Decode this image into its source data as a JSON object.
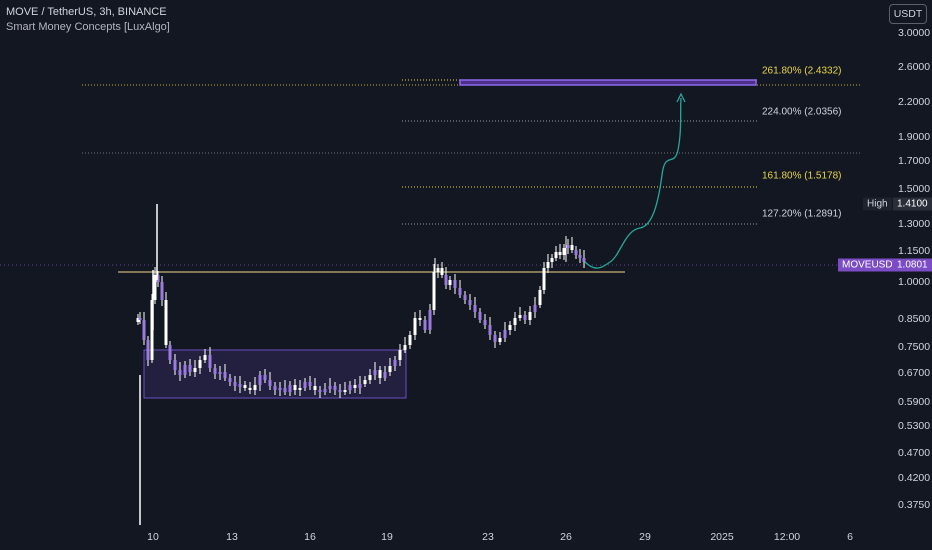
{
  "header": {
    "symbol_title": "MOVE / TetherUS, 3h, BINANCE",
    "indicator": "Smart Money Concepts [LuxAlgo]"
  },
  "currency_button": "USDT",
  "price_axis": [
    "3.0000",
    "2.6000",
    "2.2000",
    "1.9000",
    "1.7000",
    "1.5000",
    "1.3000",
    "1.1500",
    "1.0000",
    "0.8500",
    "0.7500",
    "0.6700",
    "0.5900",
    "0.5300",
    "0.4700",
    "0.4200",
    "0.3750"
  ],
  "time_axis": [
    "10",
    "13",
    "16",
    "19",
    "23",
    "26",
    "29",
    "2025",
    "12:00",
    "6"
  ],
  "fib_levels": [
    {
      "label": "261.80% (2.4332)",
      "color": "#e8d44d"
    },
    {
      "label": "224.00% (2.0356)",
      "color": "#d1d4dc"
    },
    {
      "label": "161.80% (1.5178)",
      "color": "#e8d44d"
    },
    {
      "label": "127.20% (1.2891)",
      "color": "#d1d4dc"
    }
  ],
  "high_tag": {
    "label": "High",
    "value": "1.4100"
  },
  "symbol_tag": {
    "label": "MOVEUSDT",
    "value": "1.0801"
  },
  "colors": {
    "background": "#131722",
    "candle": "#ffffff",
    "accent": "#7b4cc4",
    "fib_yellow": "#e8d44d",
    "projection": "#26a69a",
    "range_box": "#6c4ec4"
  },
  "chart_data": {
    "type": "candlestick",
    "title": "MOVE / TetherUS, 3h, BINANCE",
    "y_scale": "log",
    "ylim": [
      0.35,
      3.2
    ],
    "last_price": 1.0801,
    "high": 1.41,
    "fib_levels": [
      2.4332,
      2.0356,
      1.5178,
      1.2891
    ],
    "support_level": 1.04,
    "consolidation_range": [
      0.6,
      0.74
    ],
    "projection_target": 2.3
  }
}
